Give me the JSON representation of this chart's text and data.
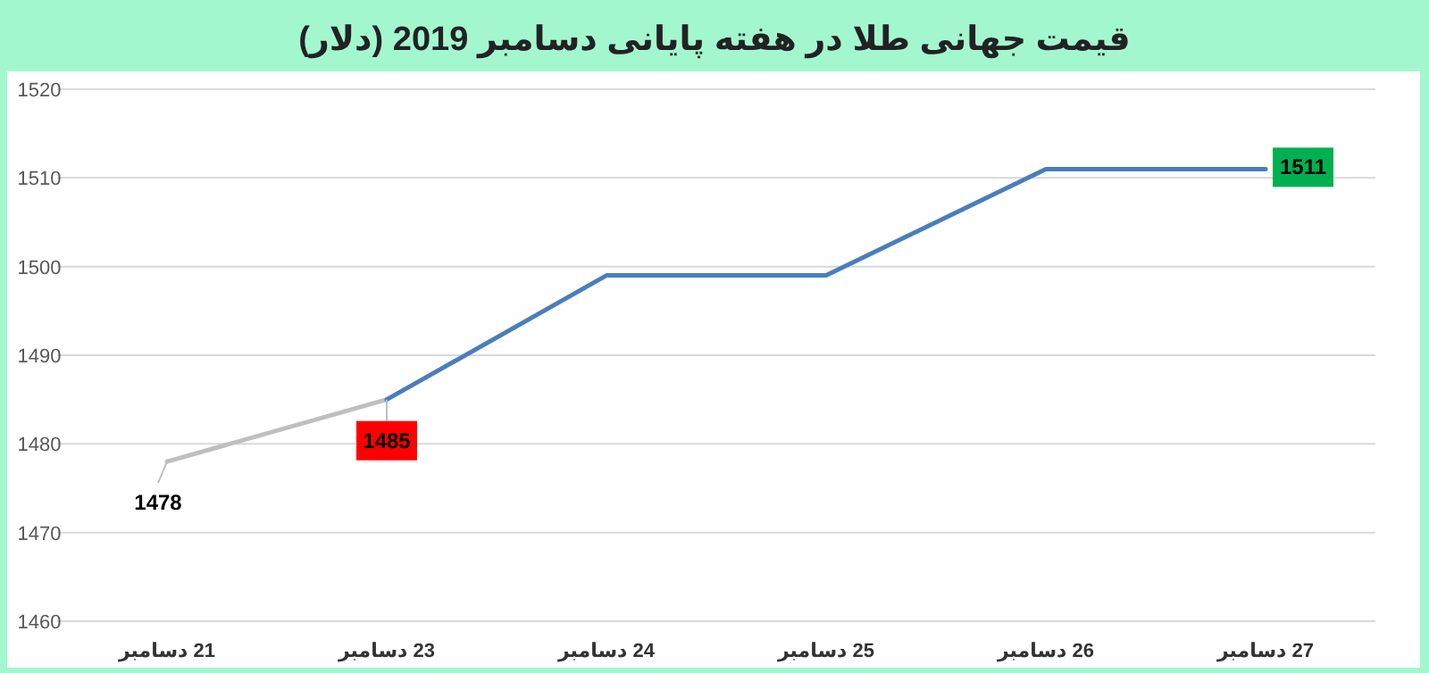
{
  "chart_data": {
    "type": "line",
    "title": "قیمت جهانی طلا در هفته پایانی دسامبر 2019 (دلار)",
    "categories": [
      "21 دسامبر",
      "23 دسامبر",
      "24 دسامبر",
      "25 دسامبر",
      "26 دسامبر",
      "27 دسامبر"
    ],
    "series": [
      {
        "color": "#bfbfbf",
        "values": [
          1478,
          1485,
          null,
          null,
          null,
          null
        ],
        "value_labels": [
          "1478",
          null,
          null,
          null,
          null,
          null
        ]
      },
      {
        "color": "#4a7ebb",
        "values": [
          null,
          1485,
          1499,
          1499,
          1511,
          1511
        ],
        "value_labels": [
          null,
          "1485",
          null,
          null,
          null,
          "1511"
        ]
      }
    ],
    "ylim": [
      1460,
      1520
    ],
    "yticks": [
      1460,
      1470,
      1480,
      1490,
      1500,
      1510,
      1520
    ],
    "grid": "y",
    "marker": "none",
    "line_style": "solid"
  }
}
